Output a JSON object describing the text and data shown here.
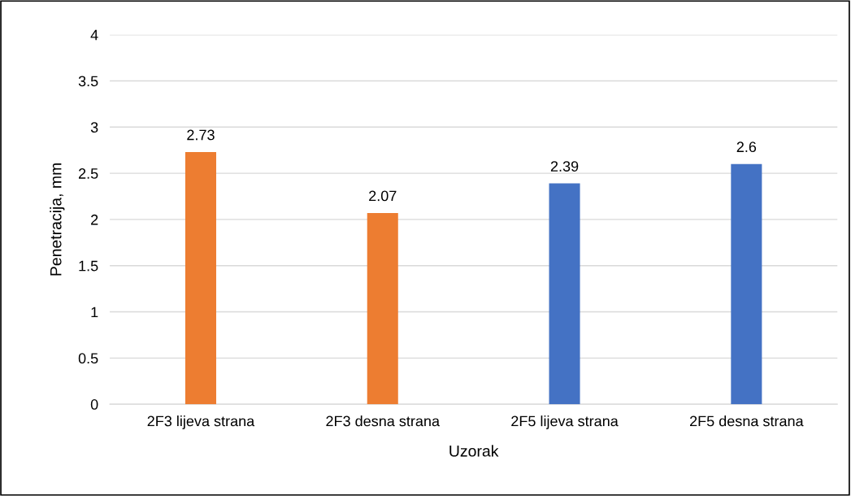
{
  "chart_data": {
    "type": "bar",
    "xlabel": "Uzorak",
    "ylabel": "Penetracija, mm",
    "categories": [
      "2F3 lijeva strana",
      "2F3 desna strana",
      "2F5 lijeva strana",
      "2F5 desna strana"
    ],
    "values": [
      2.73,
      2.07,
      2.39,
      2.6
    ],
    "colors": [
      "#ed7d31",
      "#ed7d31",
      "#4472c4",
      "#4472c4"
    ],
    "ylim": [
      0,
      4
    ],
    "yticks": [
      0,
      0.5,
      1,
      1.5,
      2,
      2.5,
      3,
      3.5,
      4
    ],
    "grid": "y",
    "data_labels": true
  }
}
